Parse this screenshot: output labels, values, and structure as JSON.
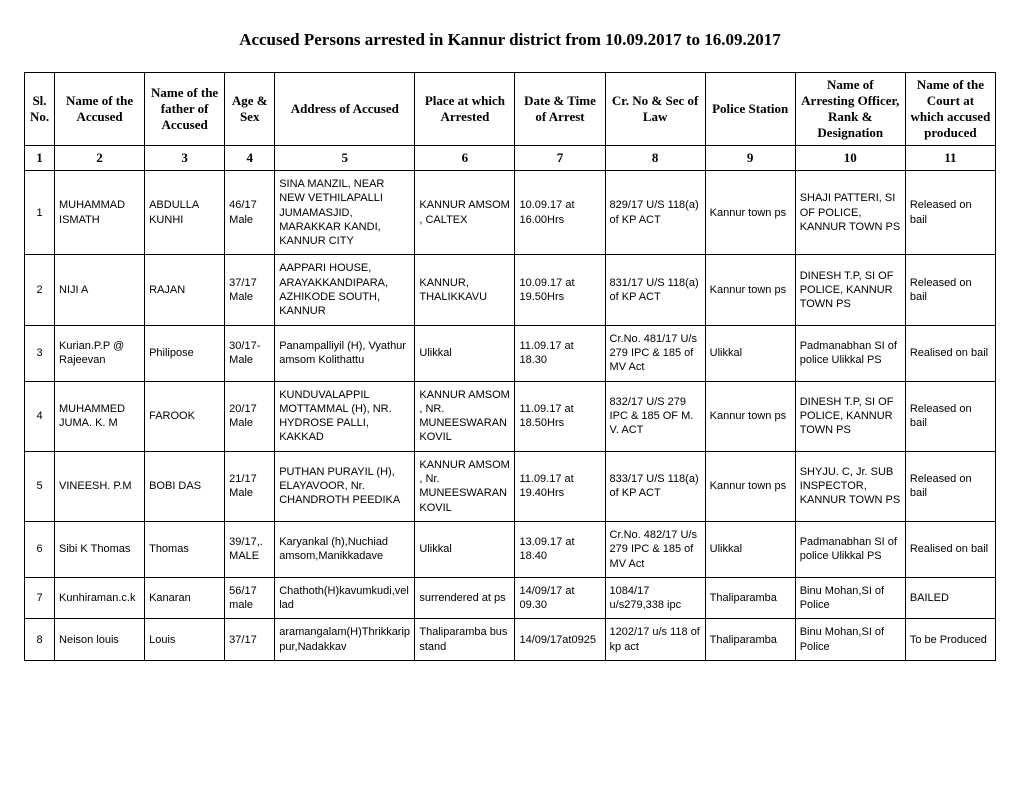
{
  "title": "Accused Persons arrested in   Kannur   district from   10.09.2017 to 16.09.2017",
  "headers": {
    "h1": "Sl. No.",
    "h2": "Name of the Accused",
    "h3": "Name of the father of Accused",
    "h4": "Age & Sex",
    "h5": "Address of Accused",
    "h6": "Place at which Arrested",
    "h7": "Date & Time of Arrest",
    "h8": "Cr. No & Sec of Law",
    "h9": "Police Station",
    "h10": "Name of Arresting Officer, Rank & Designation",
    "h11": "Name of the Court at which accused produced"
  },
  "numrow": {
    "n1": "1",
    "n2": "2",
    "n3": "3",
    "n4": "4",
    "n5": "5",
    "n6": "6",
    "n7": "7",
    "n8": "8",
    "n9": "9",
    "n10": "10",
    "n11": "11"
  },
  "rows": [
    {
      "sl": "1",
      "name": "MUHAMMAD ISMATH",
      "father": "ABDULLA KUNHI",
      "age": "46/17 Male",
      "address": "SINA MANZIL, NEAR NEW VETHILAPALLI JUMAMASJID, MARAKKAR KANDI, KANNUR CITY",
      "place": "KANNUR AMSOM , CALTEX",
      "datetime": "10.09.17 at 16.00Hrs",
      "crno": "829/17 U/S 118(a) of KP ACT",
      "station": "Kannur town ps",
      "officer": "SHAJI PATTERI, SI OF POLICE, KANNUR TOWN PS",
      "court": "Released on bail"
    },
    {
      "sl": "2",
      "name": "NIJI A",
      "father": "RAJAN",
      "age": "37/17 Male",
      "address": "AAPPARI HOUSE, ARAYAKKANDIPARA, AZHIKODE  SOUTH, KANNUR",
      "place": "KANNUR, THALIKKAVU",
      "datetime": "10.09.17 at 19.50Hrs",
      "crno": "831/17 U/S 118(a) of KP ACT",
      "station": "Kannur town ps",
      "officer": "DINESH T.P, SI OF POLICE, KANNUR TOWN PS",
      "court": "Released on bail"
    },
    {
      "sl": "3",
      "name": "Kurian.P.P @ Rajeevan",
      "father": "Philipose",
      "age": "30/17- Male",
      "address": "Panampalliyil (H), Vyathur amsom Kolithattu",
      "place": "Ulikkal",
      "datetime": "11.09.17 at 18.30",
      "crno": "Cr.No. 481/17 U/s  279 IPC & 185 of MV Act",
      "station": "Ulikkal",
      "officer": "Padmanabhan SI of police Ulikkal PS",
      "court": "Realised on bail"
    },
    {
      "sl": "4",
      "name": "MUHAMMED JUMA. K. M",
      "father": "FAROOK",
      "age": "20/17 Male",
      "address": "KUNDUVALAPPIL MOTTAMMAL (H), NR. HYDROSE PALLI, KAKKAD",
      "place": "KANNUR AMSOM , NR. MUNEESWARAN KOVIL",
      "datetime": "11.09.17 at 18.50Hrs",
      "crno": "832/17 U/S 279 IPC & 185 OF M. V. ACT",
      "station": "Kannur town ps",
      "officer": "DINESH T.P, SI OF POLICE, KANNUR TOWN PS",
      "court": "Released on bail"
    },
    {
      "sl": "5",
      "name": "VINEESH. P.M",
      "father": "BOBI DAS",
      "age": "21/17 Male",
      "address": "PUTHAN PURAYIL (H), ELAYAVOOR, Nr. CHANDROTH PEEDIKA",
      "place": "KANNUR AMSOM , Nr. MUNEESWARAN KOVIL",
      "datetime": "11.09.17 at 19.40Hrs",
      "crno": "833/17 U/S 118(a) of KP ACT",
      "station": "Kannur town ps",
      "officer": "SHYJU. C, Jr. SUB INSPECTOR, KANNUR TOWN PS",
      "court": "Released on bail"
    },
    {
      "sl": "6",
      "name": "Sibi  K Thomas",
      "father": "Thomas",
      "age": "39/17,. MALE",
      "address": "Karyankal (h),Nuchiad amsom,Manikkadave",
      "place": "Ulikkal",
      "datetime": "13.09.17 at 18.40",
      "crno": "Cr.No. 482/17 U/s  279 IPC & 185 of MV Act",
      "station": "Ulikkal",
      "officer": "Padmanabhan SI of police Ulikkal PS",
      "court": "Realised on bail"
    },
    {
      "sl": "7",
      "name": "Kunhiraman.c.k",
      "father": "Kanaran",
      "age": "56/17 male",
      "address": "Chathoth(H)kavumkudi,vellad",
      "place": "surrendered at ps",
      "datetime": "14/09/17 at 09.30",
      "crno": "1084/17 u/s279,338 ipc",
      "station": "Thaliparamba",
      "officer": "Binu Mohan,SI of Police",
      "court": "BAILED"
    },
    {
      "sl": "8",
      "name": "Neison louis",
      "father": "Louis",
      "age": "37/17",
      "address": "aramangalam(H)Thrikkarippur,Nadakkav",
      "place": "Thaliparamba bus stand",
      "datetime": "14/09/17at0925",
      "crno": "1202/17 u/s 118 of kp act",
      "station": "Thaliparamba",
      "officer": "Binu Mohan,SI of Police",
      "court": "To be Produced"
    }
  ]
}
